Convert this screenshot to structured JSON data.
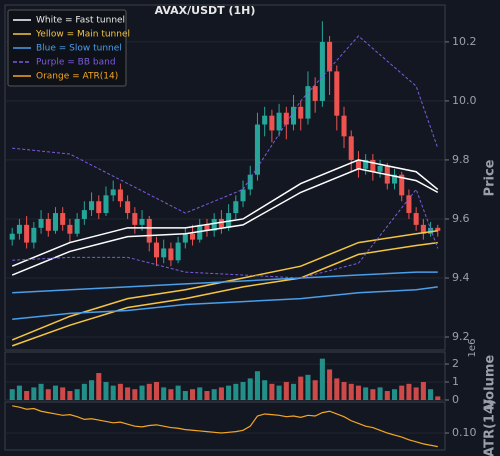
{
  "chart_data": {
    "type": "candlestick",
    "title": "AVAX/USDT (1H)",
    "y_label": "Price",
    "up_color": "#26a69a",
    "down_color": "#ef5350",
    "xlim": [
      -1,
      60
    ],
    "ylim": [
      9.156,
      10.325
    ],
    "yticks": [
      9.2,
      9.4,
      9.6,
      9.8,
      {
        "value": 10.0,
        "label": "10.0"
      },
      10.2
    ],
    "grid": true,
    "legend_position": "upper left",
    "open": [
      9.53,
      9.55,
      9.58,
      9.52,
      9.57,
      9.6,
      9.56,
      9.62,
      9.58,
      9.55,
      9.6,
      9.63,
      9.66,
      9.62,
      9.68,
      9.7,
      9.66,
      9.62,
      9.58,
      9.6,
      9.52,
      9.47,
      9.5,
      9.46,
      9.52,
      9.55,
      9.53,
      9.58,
      9.56,
      9.6,
      9.57,
      9.62,
      9.66,
      9.7,
      9.75,
      9.92,
      9.95,
      9.9,
      9.96,
      9.92,
      9.98,
      9.94,
      10.05,
      10.0,
      10.2,
      10.1,
      9.95,
      9.88,
      9.8,
      9.77,
      9.8,
      9.76,
      9.78,
      9.72,
      9.75,
      9.68,
      9.62,
      9.58,
      9.55,
      9.57
    ],
    "high": [
      9.57,
      9.6,
      9.61,
      9.59,
      9.63,
      9.62,
      9.64,
      9.64,
      9.6,
      9.62,
      9.66,
      9.69,
      9.68,
      9.71,
      9.73,
      9.72,
      9.68,
      9.64,
      9.63,
      9.61,
      9.54,
      9.53,
      9.52,
      9.54,
      9.57,
      9.58,
      9.6,
      9.6,
      9.62,
      9.63,
      9.65,
      9.68,
      9.73,
      9.78,
      9.96,
      9.98,
      9.97,
      9.99,
      9.98,
      10.02,
      10.0,
      10.1,
      10.08,
      10.27,
      10.22,
      10.12,
      9.98,
      9.9,
      9.83,
      9.82,
      9.82,
      9.8,
      9.79,
      9.77,
      9.76,
      9.7,
      9.64,
      9.6,
      9.59,
      9.58
    ],
    "low": [
      9.51,
      9.53,
      9.5,
      9.5,
      9.55,
      9.54,
      9.55,
      9.56,
      9.52,
      9.54,
      9.58,
      9.61,
      9.6,
      9.61,
      9.66,
      9.64,
      9.6,
      9.55,
      9.56,
      9.49,
      9.44,
      9.45,
      9.44,
      9.45,
      9.5,
      9.51,
      9.52,
      9.54,
      9.54,
      9.55,
      9.56,
      9.6,
      9.64,
      9.68,
      9.73,
      9.88,
      9.86,
      9.88,
      9.87,
      9.9,
      9.9,
      9.92,
      9.96,
      9.98,
      10.02,
      9.9,
      9.84,
      9.76,
      9.74,
      9.75,
      9.73,
      9.74,
      9.7,
      9.7,
      9.66,
      9.6,
      9.56,
      9.53,
      9.54,
      9.54
    ],
    "close": [
      9.55,
      9.58,
      9.52,
      9.57,
      9.6,
      9.56,
      9.62,
      9.58,
      9.55,
      9.6,
      9.63,
      9.66,
      9.62,
      9.68,
      9.7,
      9.66,
      9.62,
      9.58,
      9.6,
      9.52,
      9.47,
      9.5,
      9.46,
      9.52,
      9.55,
      9.53,
      9.58,
      9.56,
      9.6,
      9.57,
      9.62,
      9.66,
      9.7,
      9.75,
      9.92,
      9.95,
      9.9,
      9.96,
      9.92,
      9.98,
      9.94,
      10.05,
      10.0,
      10.2,
      10.1,
      9.95,
      9.88,
      9.8,
      9.77,
      9.8,
      9.76,
      9.78,
      9.72,
      9.75,
      9.68,
      9.62,
      9.58,
      9.55,
      9.57,
      9.56
    ],
    "overlays": [
      {
        "legend": "White = Fast tunnel",
        "color": "#ffffff",
        "dashed": false,
        "x": [
          0,
          8,
          16,
          24,
          32,
          40,
          48,
          56,
          59
        ],
        "lines": [
          [
            9.44,
            9.52,
            9.57,
            9.57,
            9.6,
            9.72,
            9.8,
            9.76,
            9.7
          ],
          [
            9.41,
            9.49,
            9.54,
            9.55,
            9.58,
            9.69,
            9.77,
            9.73,
            9.69
          ]
        ]
      },
      {
        "legend": "Yellow = Main tunnel",
        "color": "#f5c542",
        "dashed": false,
        "x": [
          0,
          8,
          16,
          24,
          32,
          40,
          48,
          56,
          59
        ],
        "lines": [
          [
            9.19,
            9.27,
            9.33,
            9.36,
            9.4,
            9.44,
            9.52,
            9.55,
            9.56
          ],
          [
            9.17,
            9.24,
            9.3,
            9.33,
            9.37,
            9.4,
            9.48,
            9.51,
            9.52
          ]
        ]
      },
      {
        "legend": "Blue = Slow tunnel",
        "color": "#4a9eea",
        "dashed": false,
        "x": [
          0,
          8,
          16,
          24,
          32,
          40,
          48,
          56,
          59
        ],
        "lines": [
          [
            9.35,
            9.36,
            9.37,
            9.38,
            9.39,
            9.4,
            9.41,
            9.42,
            9.42
          ],
          [
            9.26,
            9.28,
            9.29,
            9.31,
            9.32,
            9.33,
            9.35,
            9.36,
            9.37
          ]
        ]
      },
      {
        "legend": "Purple = BB band",
        "color": "#7b5ce0",
        "dashed": true,
        "x": [
          0,
          8,
          16,
          24,
          32,
          40,
          48,
          56,
          59
        ],
        "lines": [
          [
            9.84,
            9.82,
            9.72,
            9.62,
            9.7,
            10.0,
            10.22,
            10.05,
            9.84
          ],
          [
            9.46,
            9.47,
            9.47,
            9.42,
            9.41,
            9.4,
            9.45,
            9.7,
            9.5
          ]
        ]
      }
    ],
    "volume": {
      "y_label": "Volume",
      "offset_label": "1e6",
      "ylim": [
        0,
        2.67
      ],
      "yticks": [
        0,
        1,
        2
      ],
      "values": [
        0.6,
        0.8,
        0.5,
        0.7,
        0.9,
        0.6,
        0.8,
        0.7,
        0.5,
        0.6,
        0.9,
        1.1,
        1.5,
        1.0,
        0.8,
        0.9,
        0.7,
        0.6,
        0.8,
        0.9,
        1.0,
        0.7,
        0.6,
        0.8,
        0.5,
        0.6,
        0.7,
        0.5,
        0.6,
        0.7,
        0.8,
        0.9,
        1.0,
        1.2,
        1.6,
        1.1,
        0.9,
        0.8,
        1.0,
        0.9,
        1.3,
        1.4,
        1.1,
        2.3,
        1.7,
        1.2,
        1.0,
        0.9,
        0.8,
        0.7,
        0.6,
        0.7,
        0.5,
        0.6,
        0.8,
        0.9,
        0.7,
        1.0,
        0.6,
        0.2
      ]
    },
    "atr": {
      "y_label": "ATR(14)",
      "legend": "Orange = ATR(14)",
      "color": "#f5a623",
      "ylim": [
        0.075,
        0.1456
      ],
      "yticks": [
        {
          "value": 0.1,
          "label": "0.10"
        }
      ],
      "values": [
        0.14,
        0.138,
        0.135,
        0.136,
        0.132,
        0.13,
        0.128,
        0.126,
        0.127,
        0.124,
        0.12,
        0.121,
        0.119,
        0.117,
        0.115,
        0.116,
        0.113,
        0.11,
        0.109,
        0.111,
        0.112,
        0.11,
        0.108,
        0.107,
        0.105,
        0.104,
        0.103,
        0.102,
        0.101,
        0.1,
        0.101,
        0.102,
        0.104,
        0.11,
        0.125,
        0.128,
        0.127,
        0.126,
        0.124,
        0.125,
        0.123,
        0.126,
        0.125,
        0.13,
        0.132,
        0.128,
        0.124,
        0.118,
        0.114,
        0.11,
        0.108,
        0.104,
        0.1,
        0.097,
        0.094,
        0.09,
        0.087,
        0.084,
        0.082,
        0.08
      ]
    }
  }
}
